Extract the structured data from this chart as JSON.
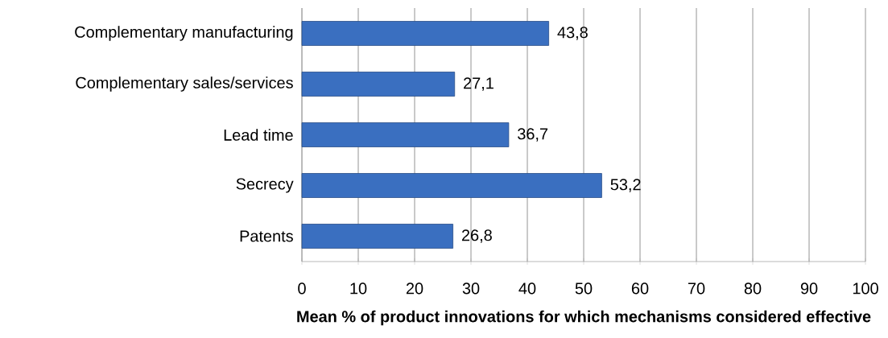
{
  "chart_data": {
    "type": "bar",
    "orientation": "horizontal",
    "xlabel": "Mean % of product innovations for which mechanisms considered effective",
    "categories": [
      "Complementary manufacturing",
      "Complementary sales/services",
      "Lead time",
      "Secrecy",
      "Patents"
    ],
    "values": [
      43.8,
      27.1,
      36.7,
      53.2,
      26.8
    ],
    "value_labels": [
      "43,8",
      "27,1",
      "36,7",
      "53,2",
      "26,8"
    ],
    "color": "#3a6fc0",
    "xlim": [
      0,
      100
    ],
    "xticks": [
      0,
      10,
      20,
      30,
      40,
      50,
      60,
      70,
      80,
      90,
      100
    ],
    "grid": "x"
  }
}
